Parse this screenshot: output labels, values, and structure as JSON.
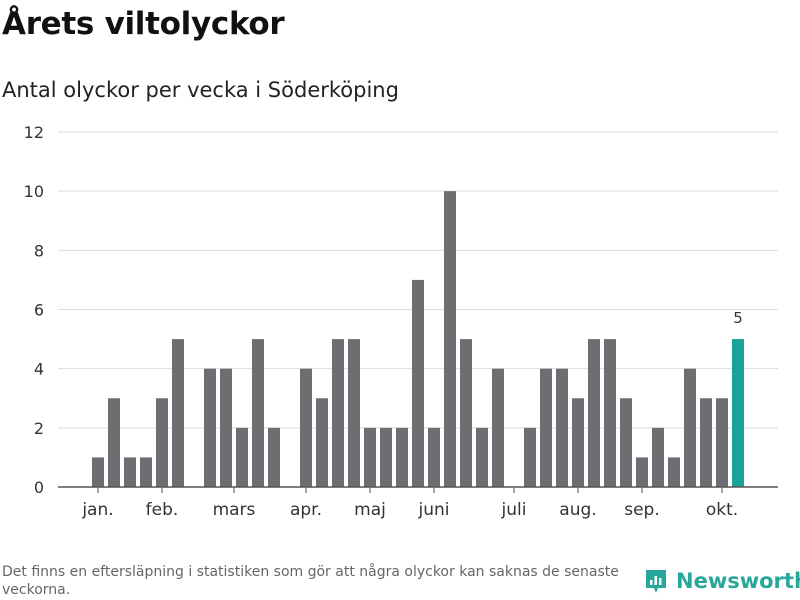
{
  "title": "Årets viltolyckor",
  "subtitle": "Antal olyckor per vecka i Söderköping",
  "footnote": "Det finns en eftersläpning i statistiken som gör att några olyckor kan saknas de senaste veckorna.",
  "brand": {
    "name": "Newsworthy",
    "icon": "bar-chart-logo-icon",
    "color": "#2aa79b"
  },
  "chart_data": {
    "type": "bar",
    "title": "Antal olyckor per vecka i Söderköping",
    "xlabel": "",
    "ylabel": "",
    "ylim": [
      0,
      12
    ],
    "yticks": [
      0,
      2,
      4,
      6,
      8,
      10,
      12
    ],
    "grid": true,
    "weeks": [
      1,
      2,
      3,
      4,
      5,
      6,
      7,
      8,
      9,
      10,
      11,
      12,
      13,
      14,
      15,
      16,
      17,
      18,
      19,
      20,
      21,
      22,
      23,
      24,
      25,
      26,
      27,
      28,
      29,
      30,
      31,
      32,
      33,
      34,
      35,
      36,
      37,
      38,
      39,
      40,
      41
    ],
    "values": [
      1,
      3,
      1,
      1,
      3,
      5,
      0,
      4,
      4,
      2,
      5,
      2,
      0,
      4,
      3,
      5,
      5,
      2,
      2,
      2,
      7,
      2,
      10,
      5,
      2,
      4,
      0,
      2,
      4,
      4,
      3,
      5,
      5,
      3,
      1,
      2,
      1,
      4,
      3,
      3,
      5
    ],
    "month_labels": [
      {
        "label": "jan.",
        "week": 1
      },
      {
        "label": "feb.",
        "week": 5
      },
      {
        "label": "mars",
        "week": 9.5
      },
      {
        "label": "apr.",
        "week": 14
      },
      {
        "label": "maj",
        "week": 18
      },
      {
        "label": "juni",
        "week": 22
      },
      {
        "label": "juli",
        "week": 27
      },
      {
        "label": "aug.",
        "week": 31
      },
      {
        "label": "sep.",
        "week": 35
      },
      {
        "label": "okt.",
        "week": 40
      }
    ],
    "highlight": {
      "week": 41,
      "label": "5"
    },
    "colors": {
      "bar": "#6e6d72",
      "highlight": "#17a39a",
      "grid": "#dddddd",
      "axis": "#555555"
    }
  }
}
